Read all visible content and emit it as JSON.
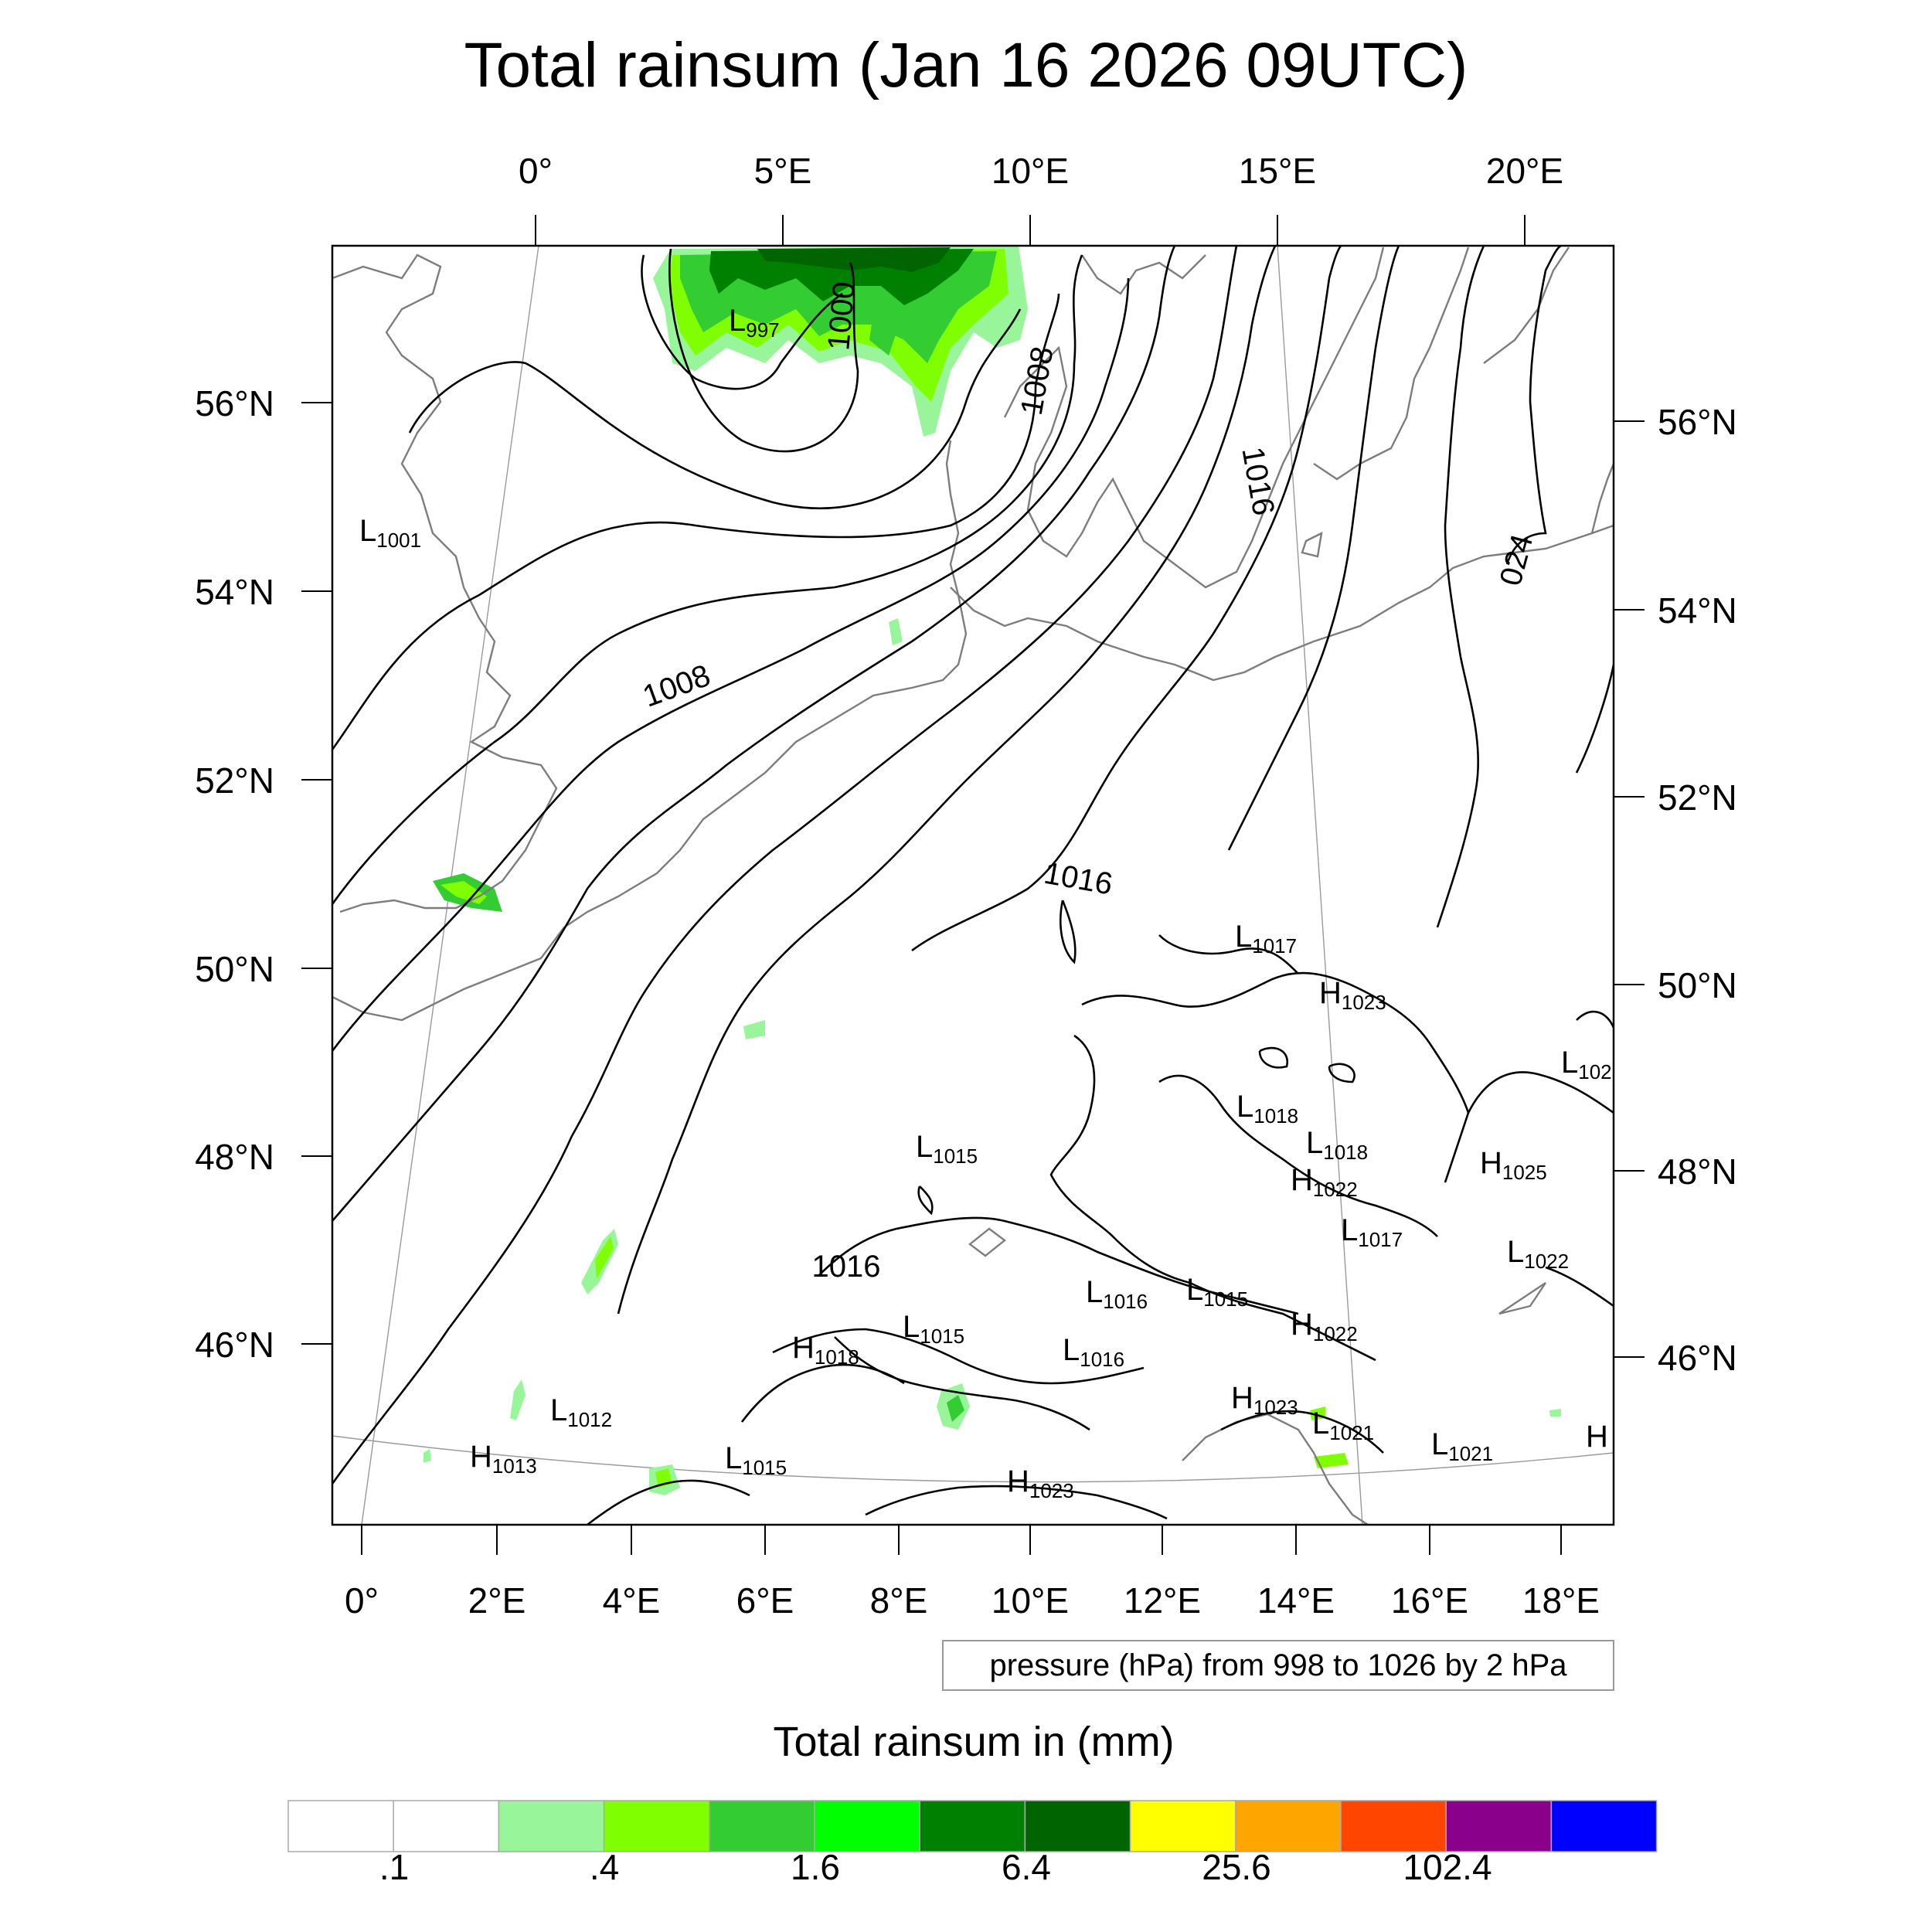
{
  "title": "Total rainsum (Jan 16 2026 09UTC)",
  "axes": {
    "top_lon_labels": [
      "0°",
      "5°E",
      "10°E",
      "15°E",
      "20°E"
    ],
    "bottom_lon_labels": [
      "0°",
      "2°E",
      "4°E",
      "6°E",
      "8°E",
      "10°E",
      "12°E",
      "14°E",
      "16°E",
      "18°E"
    ],
    "left_lat_labels": [
      "56°N",
      "54°N",
      "52°N",
      "50°N",
      "48°N",
      "46°N"
    ],
    "right_lat_labels": [
      "56°N",
      "54°N",
      "52°N",
      "50°N",
      "48°N",
      "46°N"
    ]
  },
  "isobar_labels": [
    "1000",
    "1008",
    "1008",
    "1016",
    "1016",
    "1016",
    "024"
  ],
  "pressure_centers": [
    {
      "type": "L",
      "value": "997"
    },
    {
      "type": "L",
      "value": "1001"
    },
    {
      "type": "L",
      "value": "1017"
    },
    {
      "type": "H",
      "value": "1023"
    },
    {
      "type": "L",
      "value": "102"
    },
    {
      "type": "L",
      "value": "1018"
    },
    {
      "type": "L",
      "value": "1018"
    },
    {
      "type": "H",
      "value": "1022"
    },
    {
      "type": "H",
      "value": "1025"
    },
    {
      "type": "L",
      "value": "1015"
    },
    {
      "type": "L",
      "value": "1017"
    },
    {
      "type": "L",
      "value": "1022"
    },
    {
      "type": "L",
      "value": "1016"
    },
    {
      "type": "L",
      "value": "1015"
    },
    {
      "type": "H",
      "value": "1022"
    },
    {
      "type": "L",
      "value": "1015"
    },
    {
      "type": "H",
      "value": "1018"
    },
    {
      "type": "L",
      "value": "1016"
    },
    {
      "type": "H",
      "value": "1023"
    },
    {
      "type": "L",
      "value": "1012"
    },
    {
      "type": "L",
      "value": "1021"
    },
    {
      "type": "L",
      "value": "1021"
    },
    {
      "type": "H",
      "value": "1013"
    },
    {
      "type": "L",
      "value": "1015"
    },
    {
      "type": "H",
      "value": "1023"
    },
    {
      "type": "H",
      "value": ""
    }
  ],
  "pressure_info": "pressure (hPa) from 998 to 1026 by 2 hPa",
  "colorbar": {
    "title": "Total rainsum in (mm)",
    "colors": [
      "#ffffff",
      "#ffffff",
      "#99f599",
      "#80ff00",
      "#33cc33",
      "#00ff00",
      "#008000",
      "#006400",
      "#ffff00",
      "#ffa500",
      "#ff4500",
      "#8b008b",
      "#0000ff"
    ],
    "tick_labels": [
      ".1",
      ".4",
      "1.6",
      "6.4",
      "25.6",
      "102.4"
    ]
  },
  "colors": {
    "rain_light": "#99f599",
    "rain_lime": "#80ff00",
    "rain_mid": "#33cc33",
    "rain_green": "#00ff00",
    "rain_dark": "#008000",
    "rain_darkest": "#006400",
    "coast": "#7d7d7d",
    "isobar": "#000000"
  }
}
